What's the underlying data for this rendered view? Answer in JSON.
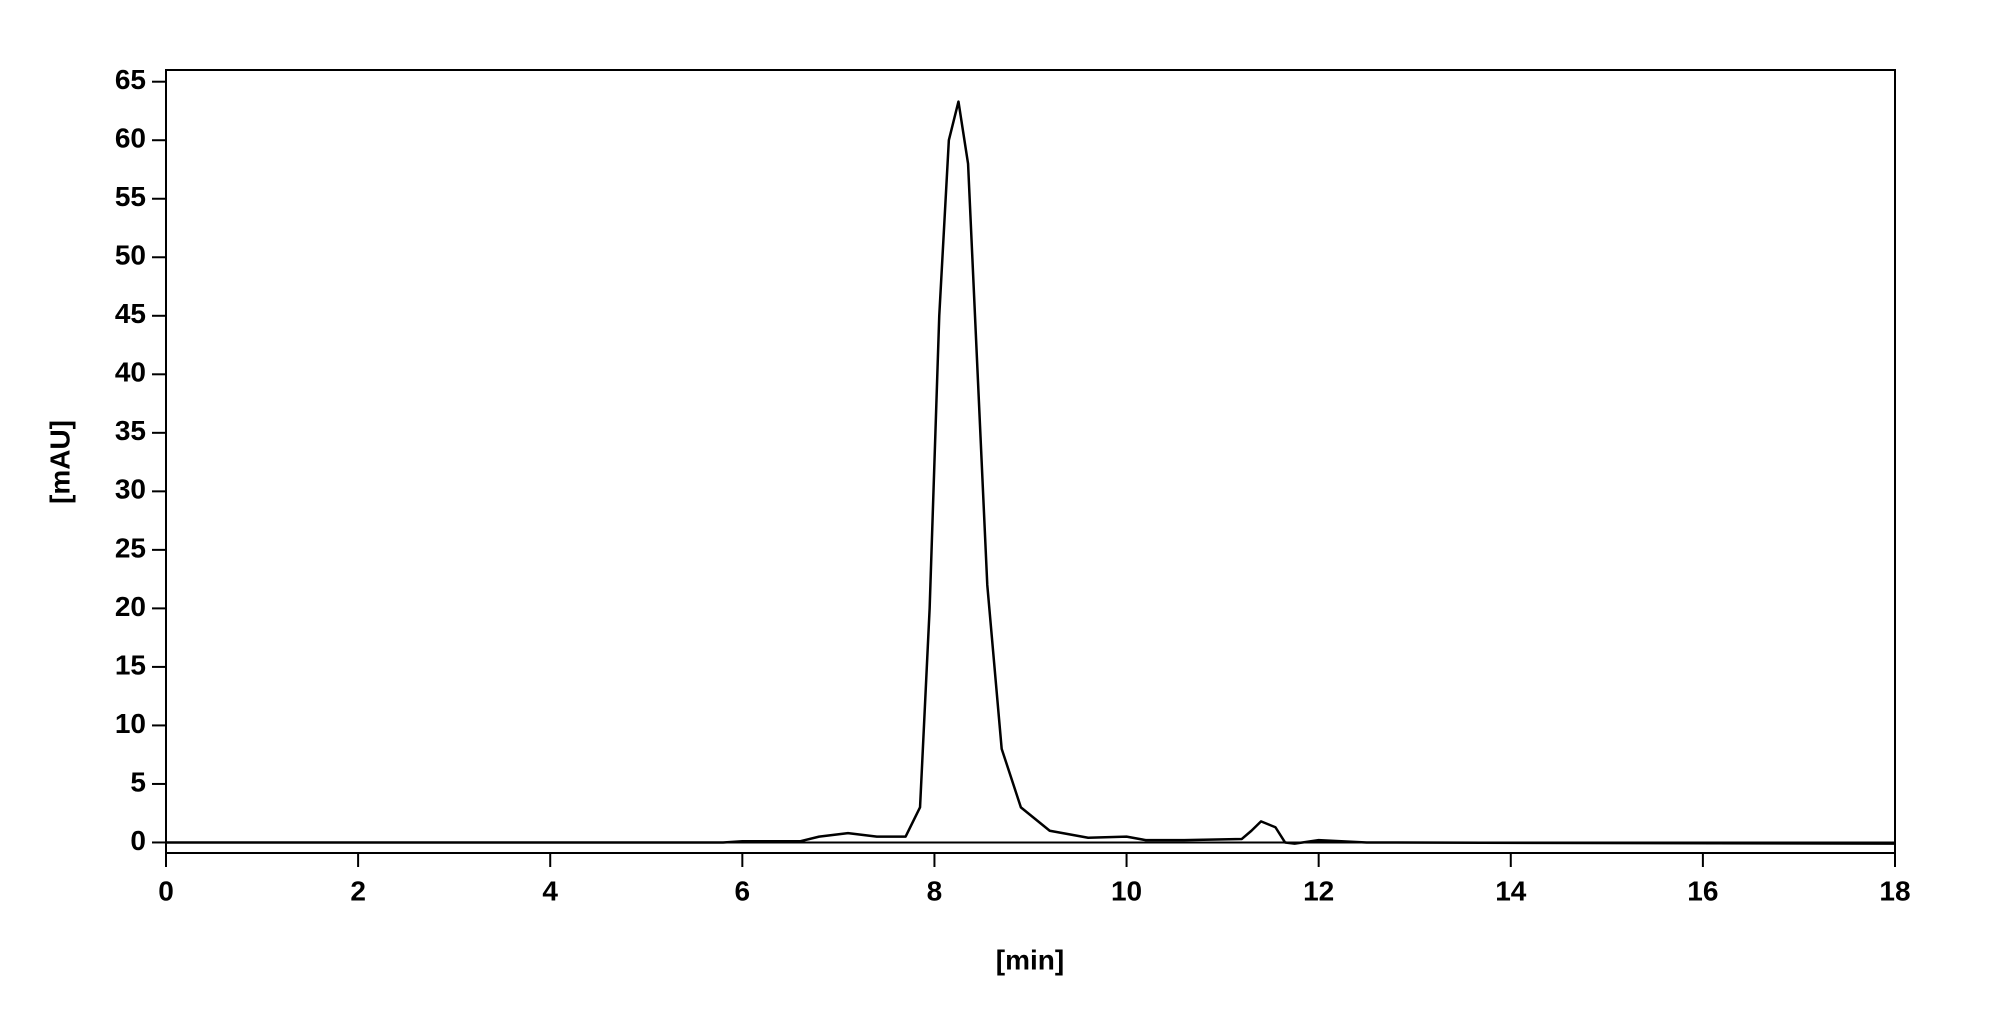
{
  "chart_data": {
    "type": "line",
    "x_label": "[min]",
    "y_label": "[mAU]",
    "x": [
      0,
      5.8,
      6.0,
      6.6,
      6.8,
      7.1,
      7.4,
      7.7,
      7.85,
      7.95,
      8.05,
      8.15,
      8.25,
      8.35,
      8.45,
      8.55,
      8.7,
      8.9,
      9.2,
      9.6,
      10.0,
      10.2,
      10.6,
      11.2,
      11.3,
      11.4,
      11.55,
      11.65,
      11.75,
      12.0,
      12.5,
      18
    ],
    "series": [
      {
        "color": "#000000",
        "values": [
          0,
          0,
          0.1,
          0.1,
          0.5,
          0.8,
          0.5,
          0.5,
          3,
          20,
          45,
          60,
          63.3,
          58,
          40,
          22,
          8,
          3,
          1,
          0.4,
          0.5,
          0.2,
          0.2,
          0.3,
          1,
          1.8,
          1.3,
          0,
          -0.1,
          0.2,
          0,
          -0.1
        ]
      }
    ],
    "xlim": [
      0,
      18
    ],
    "xticks": [
      0,
      2,
      4,
      6,
      8,
      10,
      12,
      14,
      16,
      18
    ],
    "ylim": [
      -0.9,
      66
    ],
    "yticks": [
      0,
      5,
      10,
      15,
      20,
      25,
      30,
      35,
      40,
      45,
      50,
      55,
      60,
      65
    ],
    "zero_line": true,
    "grid": false
  }
}
